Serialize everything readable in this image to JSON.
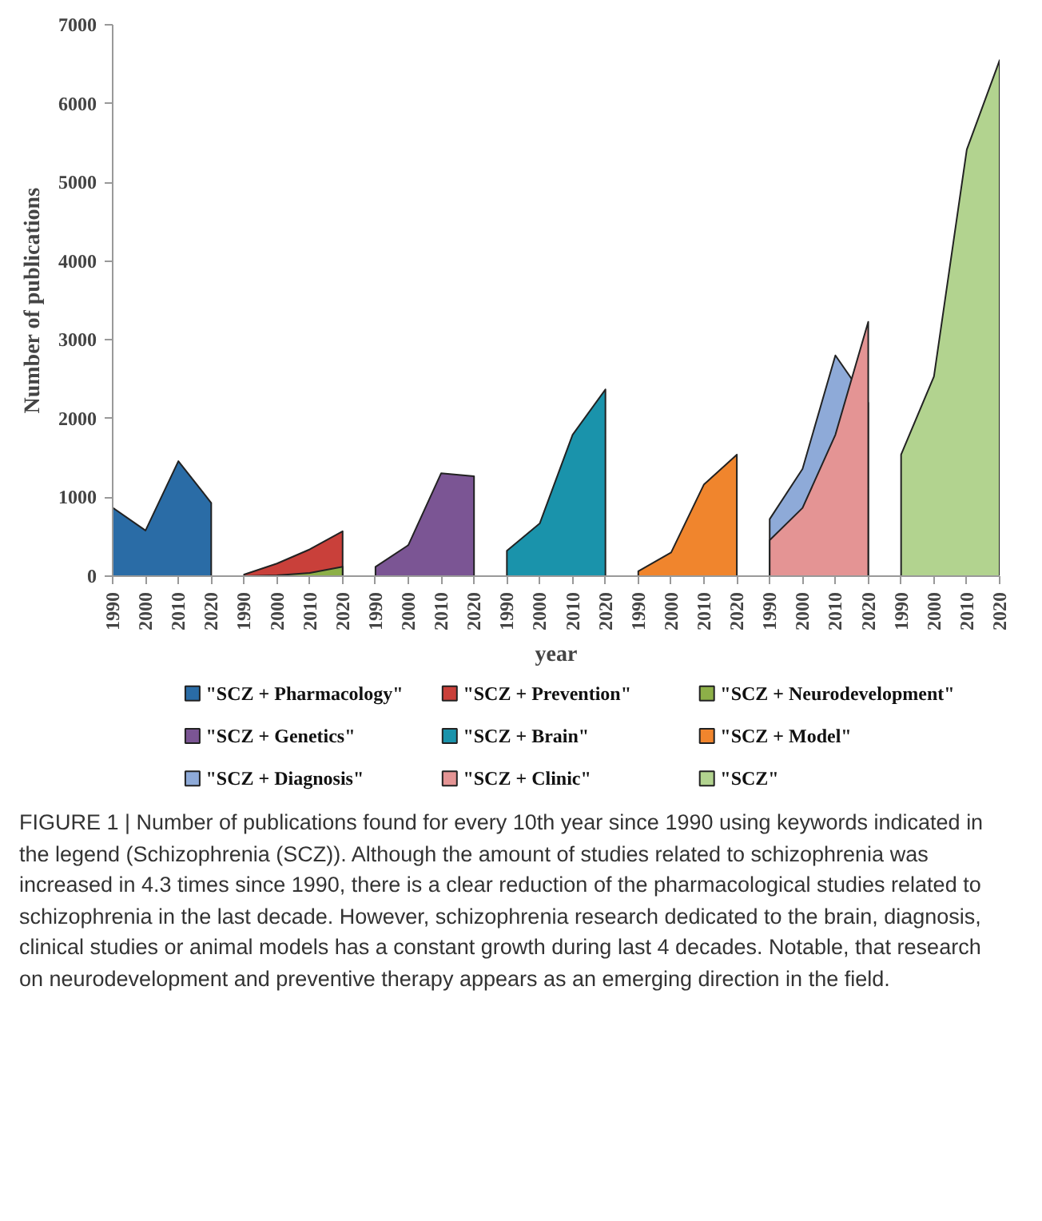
{
  "chart_data": {
    "type": "area",
    "xlabel": "year",
    "ylabel": "Number of publications",
    "categories": [
      "1990",
      "2000",
      "2010",
      "2020",
      "1990",
      "2000",
      "2010",
      "2020",
      "1990",
      "2000",
      "2010",
      "2020",
      "1990",
      "2000",
      "2010",
      "2020",
      "1990",
      "2000",
      "2010",
      "2020",
      "1990",
      "2000",
      "2010",
      "2020",
      "1990",
      "2000",
      "2010",
      "2020"
    ],
    "ylim": [
      0,
      7000
    ],
    "yticks": [
      0,
      1000,
      2000,
      3000,
      4000,
      5000,
      6000,
      7000
    ],
    "grid": false,
    "legend": "bottom",
    "series": [
      {
        "name": "\"SCZ + Pharmacology\"",
        "color": "#2a6ca6",
        "values": [
          870,
          580,
          1460,
          930,
          null,
          null,
          null,
          null,
          null,
          null,
          null,
          null,
          null,
          null,
          null,
          null,
          null,
          null,
          null,
          null,
          null,
          null,
          null,
          null,
          null,
          null,
          null,
          null
        ]
      },
      {
        "name": "\"SCZ + Prevention\"",
        "color": "#c9403a",
        "values": [
          null,
          null,
          null,
          null,
          20,
          160,
          340,
          570,
          null,
          null,
          null,
          null,
          null,
          null,
          null,
          null,
          null,
          null,
          null,
          null,
          null,
          null,
          null,
          null,
          null,
          null,
          null,
          null
        ]
      },
      {
        "name": "\"SCZ + Neurodevelopment\"",
        "color": "#8db048",
        "values": [
          null,
          null,
          null,
          null,
          0,
          10,
          40,
          120,
          null,
          null,
          null,
          null,
          null,
          null,
          null,
          null,
          null,
          null,
          null,
          null,
          null,
          null,
          null,
          null,
          null,
          null,
          null,
          null
        ]
      },
      {
        "name": "\"SCZ + Genetics\"",
        "color": "#7b5594",
        "values": [
          null,
          null,
          null,
          null,
          null,
          null,
          null,
          null,
          118,
          394,
          1307,
          1268,
          null,
          null,
          null,
          null,
          null,
          null,
          null,
          null,
          null,
          null,
          null,
          null,
          null,
          null,
          null,
          null
        ]
      },
      {
        "name": "\"SCZ + Brain\"",
        "color": "#1a93ab",
        "values": [
          null,
          null,
          null,
          null,
          null,
          null,
          null,
          null,
          null,
          null,
          null,
          null,
          323,
          669,
          1795,
          2370,
          null,
          null,
          null,
          null,
          null,
          null,
          null,
          null,
          null,
          null,
          null,
          null
        ]
      },
      {
        "name": "\"SCZ + Model\"",
        "color": "#f0852d",
        "values": [
          null,
          null,
          null,
          null,
          null,
          null,
          null,
          null,
          null,
          null,
          null,
          null,
          null,
          null,
          null,
          null,
          63,
          300,
          1165,
          1543,
          null,
          null,
          null,
          null,
          null,
          null,
          null,
          null
        ]
      },
      {
        "name": "\"SCZ + Diagnosis\"",
        "color": "#8eaad8",
        "values": [
          null,
          null,
          null,
          null,
          null,
          null,
          null,
          null,
          null,
          null,
          null,
          null,
          null,
          null,
          null,
          null,
          null,
          null,
          null,
          null,
          724,
          1362,
          2803,
          2200,
          null,
          null,
          null,
          null
        ]
      },
      {
        "name": "\"SCZ + Clinic\"",
        "color": "#e49494",
        "values": [
          null,
          null,
          null,
          null,
          null,
          null,
          null,
          null,
          null,
          null,
          null,
          null,
          null,
          null,
          null,
          null,
          null,
          null,
          null,
          null,
          457,
          866,
          1795,
          3228,
          null,
          null,
          null,
          null
        ]
      },
      {
        "name": "\"SCZ\"",
        "color": "#b2d38f",
        "values": [
          null,
          null,
          null,
          null,
          null,
          null,
          null,
          null,
          null,
          null,
          null,
          null,
          null,
          null,
          null,
          null,
          null,
          null,
          null,
          null,
          null,
          null,
          null,
          null,
          1543,
          2535,
          5417,
          6551
        ]
      }
    ],
    "annotations": [
      "FIGURE 1 | Number of publications found for every 10th year since 1990 using keywords indicated in the legend (Schizophrenia (SCZ)). Although the amount of studies related to schizophrenia was increased in 4.3 times since 1990, there is a clear reduction of the pharmacological studies related to schizophrenia in the last decade. However, schizophrenia research dedicated to the brain, diagnosis, clinical studies or animal models has a constant growth during last 4 decades. Notable, that research on neurodevelopment and preventive therapy appears as an emerging direction in the field."
    ]
  }
}
